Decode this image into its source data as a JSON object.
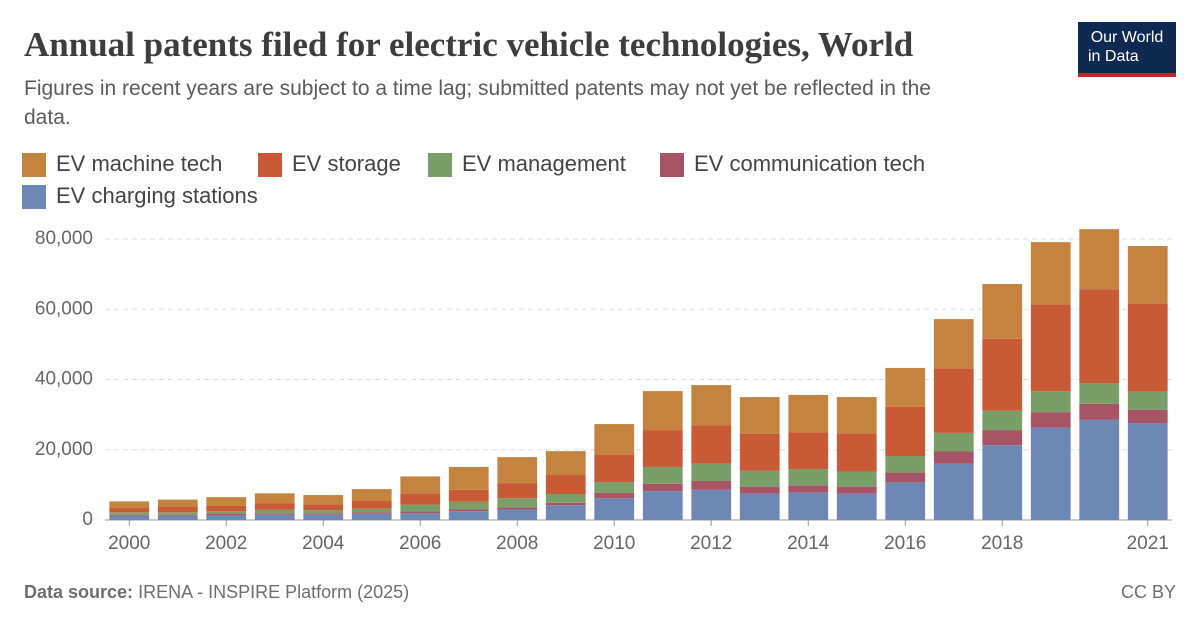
{
  "logo": "Our World in Data",
  "chart_data": {
    "type": "stacked-bar",
    "title": "Annual patents filed for electric vehicle technologies, World",
    "subtitle": [
      "Figures in recent years are subject to a time lag; submitted patents may not yet be reflected in the",
      "data."
    ],
    "x": [
      2000,
      2001,
      2002,
      2003,
      2004,
      2005,
      2006,
      2007,
      2008,
      2009,
      2010,
      2011,
      2012,
      2013,
      2014,
      2015,
      2016,
      2017,
      2018,
      2019,
      2020,
      2021
    ],
    "xticks": [
      2000,
      2002,
      2004,
      2006,
      2008,
      2010,
      2012,
      2014,
      2016,
      2018,
      2021
    ],
    "ylim": [
      0,
      80000
    ],
    "yticks": [
      0,
      {
        "value": 20000,
        "label": "20,000"
      },
      {
        "value": 40000,
        "label": "40,000"
      },
      {
        "value": 60000,
        "label": "60,000"
      },
      {
        "value": 80000,
        "label": "80,000"
      }
    ],
    "grid": true,
    "series": [
      {
        "name": "EV machine tech",
        "color": "#c4843f",
        "values": [
          1900,
          2100,
          2500,
          2900,
          2600,
          3400,
          4800,
          6500,
          7400,
          6800,
          8600,
          11100,
          11400,
          10500,
          10600,
          10400,
          11100,
          14000,
          15600,
          17700,
          17100,
          16400
        ]
      },
      {
        "name": "EV storage",
        "color": "#c85a36",
        "values": [
          1200,
          1500,
          1500,
          1800,
          1700,
          2200,
          3200,
          3400,
          4300,
          5400,
          7900,
          10500,
          11000,
          10500,
          10500,
          10800,
          14000,
          18400,
          20500,
          24700,
          26800,
          25100
        ]
      },
      {
        "name": "EV management",
        "color": "#7a9e67",
        "values": [
          700,
          700,
          800,
          1000,
          900,
          1000,
          2000,
          2200,
          2600,
          2500,
          3100,
          4800,
          4900,
          4500,
          4600,
          4300,
          4700,
          5300,
          5500,
          6000,
          5800,
          5100
        ]
      },
      {
        "name": "EV communication tech",
        "color": "#a75466",
        "values": [
          300,
          300,
          400,
          400,
          400,
          400,
          500,
          500,
          600,
          700,
          1500,
          2100,
          2500,
          2000,
          2100,
          2000,
          2800,
          3500,
          4300,
          4400,
          4600,
          3800
        ]
      },
      {
        "name": "EV charging stations",
        "color": "#6d88b4",
        "values": [
          1200,
          1200,
          1300,
          1500,
          1500,
          1800,
          1900,
          2500,
          3000,
          4200,
          6200,
          8200,
          8600,
          7500,
          7800,
          7500,
          10700,
          16000,
          21300,
          26300,
          28500,
          27600
        ]
      }
    ],
    "source_label": "Data source:",
    "source": "IRENA - INSPIRE Platform (2025)",
    "license": "CC BY"
  }
}
